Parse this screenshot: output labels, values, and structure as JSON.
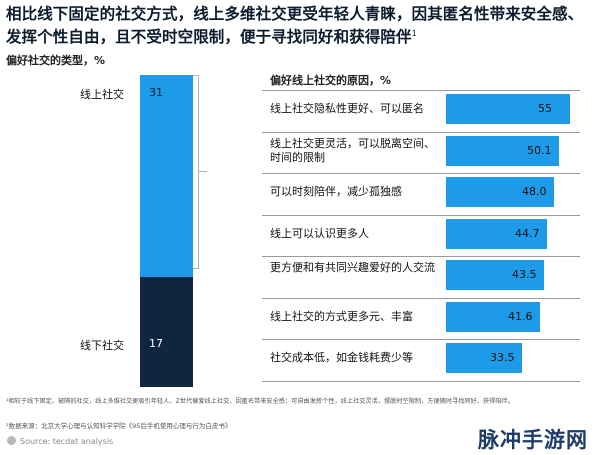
{
  "title": {
    "text": "相比线下固定的社交方式，线上多维社交更受年轻人青睐，因其匿名性带来安全感、发挥个性自由，且不受时空限制，便于寻找同好和获得陪伴",
    "sup": "1"
  },
  "colors": {
    "online": "#1e9be8",
    "offline": "#10263f",
    "bar": "#1e9be8",
    "separator": "#9a9a9a"
  },
  "chart_data": [
    {
      "type": "bar",
      "subtype": "stacked-100",
      "title": "偏好社交的类型，%",
      "categories": [
        "线上社交",
        "线下社交"
      ],
      "values": [
        31,
        17
      ],
      "xlabel": "",
      "ylabel": "",
      "grid": false
    },
    {
      "type": "bar",
      "orientation": "horizontal",
      "title": "偏好线上社交的原因，%",
      "categories": [
        "线上社交隐私性更好、可以匿名",
        "线上社交更灵活，可以脱离空间、时间的限制",
        "可以时刻陪伴，减少孤独感",
        "线上可以认识更多人",
        "更方便和有共同兴趣爱好的人交流",
        "线上社交的方式更多元、丰富",
        "社交成本低，如金钱耗费少等"
      ],
      "values": [
        55,
        50.1,
        48.0,
        44.7,
        43.5,
        41.6,
        33.5
      ],
      "value_labels": [
        "55",
        "50.1",
        "48.0",
        "44.7",
        "43.5",
        "41.6",
        "33.5"
      ],
      "xlim": [
        0,
        55
      ],
      "xlabel": "",
      "ylabel": "",
      "grid": false
    }
  ],
  "footnotes": {
    "note1": "¹相较于线下固定、被隔的社交，线上多维社交更吸引年轻人，Z世代偏爱线上社交，因匿名带来安全感；可自由发挥个性，线上社交灵活，摆脱时空限制，方便随时寻找同好、获得陪伴。",
    "note2": "²数据来源：北京大学心理与认知科学学院《95后手机使用心理与行为白皮书》",
    "source": "Source: tecdat analysis"
  },
  "watermark": "脉冲手游网"
}
